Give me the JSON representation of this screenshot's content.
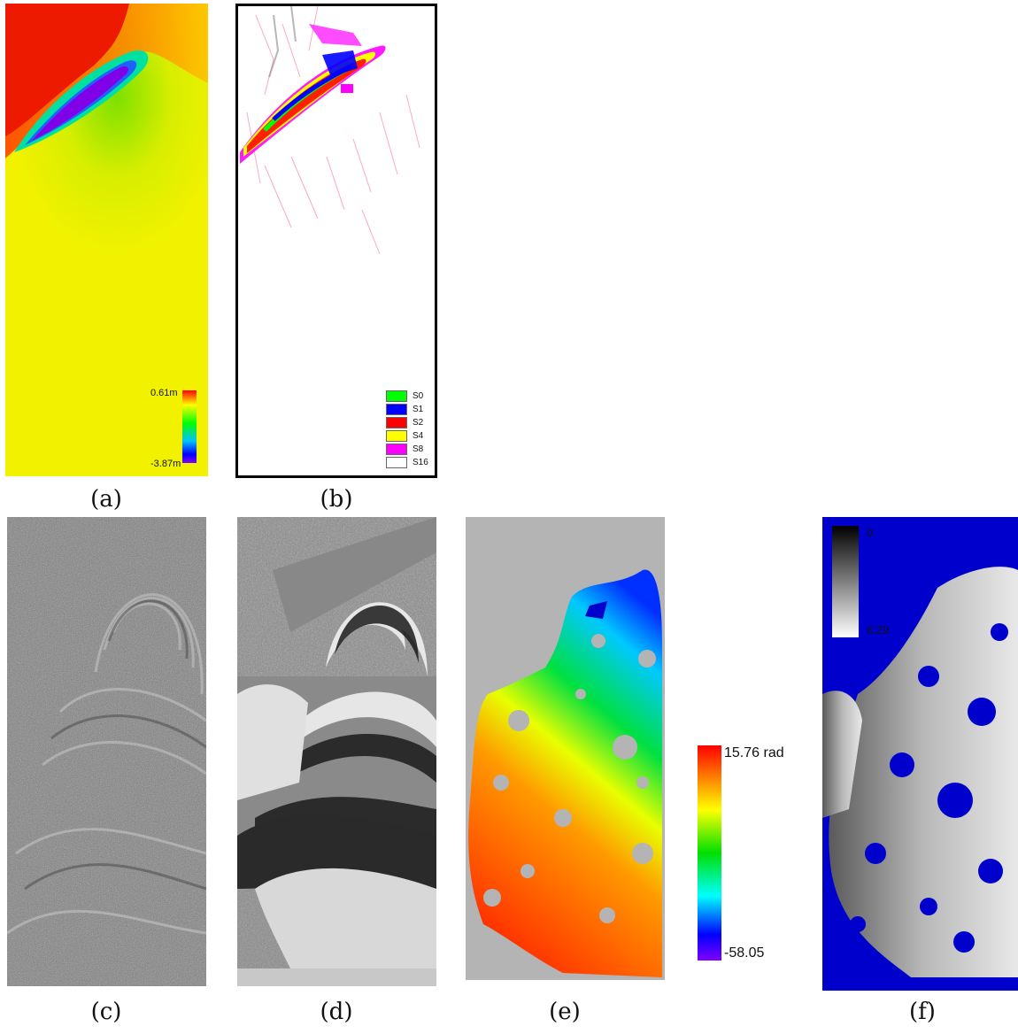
{
  "panels": {
    "a": {
      "caption": "(a)",
      "colorbar": {
        "max": "0.61m",
        "min": "-3.87m"
      }
    },
    "b": {
      "caption": "(b)",
      "legend": [
        {
          "label": "S0",
          "color": "#00ff00"
        },
        {
          "label": "S1",
          "color": "#0000ff"
        },
        {
          "label": "S2",
          "color": "#ff0000"
        },
        {
          "label": "S4",
          "color": "#ffff00"
        },
        {
          "label": "S8",
          "color": "#ff00ff"
        },
        {
          "label": "S16",
          "color": "#ffffff"
        }
      ]
    },
    "c": {
      "caption": "(c)"
    },
    "d": {
      "caption": "(d)"
    },
    "e": {
      "caption": "(e)",
      "colorbar": {
        "max": "15.76 rad",
        "min": "-58.05"
      }
    },
    "f": {
      "caption": "(f)",
      "colorbar": {
        "min": "0",
        "max": "6.29"
      }
    }
  },
  "colors": {
    "background_gray": "#b4b4b4",
    "mask_blue": "#0000cc",
    "deformation_yellow": "#f2f200"
  }
}
